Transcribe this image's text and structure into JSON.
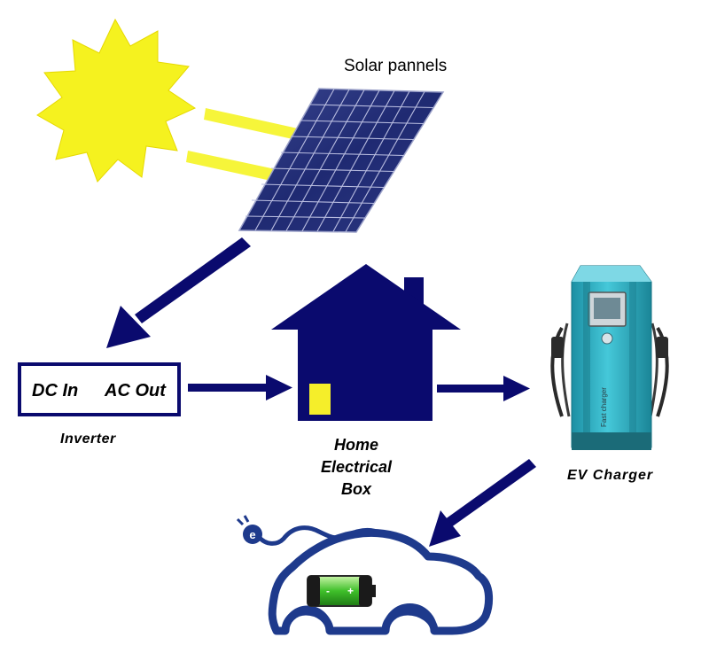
{
  "labels": {
    "solar_panels": "Solar pannels",
    "inverter": "Inverter",
    "dc_in": "DC In",
    "ac_out": "AC Out",
    "home_line1": "Home",
    "home_line2": "Electrical",
    "home_line3": "Box",
    "ev_charger": "EV Charger",
    "charger_brand": "Fast charger"
  },
  "colors": {
    "navy": "#0a0a6e",
    "sun": "#f5f21f",
    "sun_rays": "#f6f53a",
    "panel": "#26307a",
    "charger_teal": "#2eb6c9",
    "battery_green": "#3fbf2a"
  }
}
